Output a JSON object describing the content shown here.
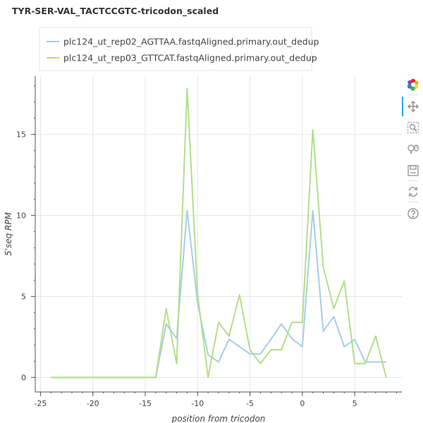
{
  "chart_data": {
    "type": "line",
    "title": "TYR-SER-VAL_TACTCCGTC-tricodon_scaled",
    "xlabel": "position from tricodon",
    "ylabel": "5'seq RPM",
    "xlim": [
      -25.5,
      9.5
    ],
    "ylim": [
      -0.9,
      18.6
    ],
    "x_ticks": [
      -25,
      -20,
      -15,
      -10,
      -5,
      0,
      5
    ],
    "y_ticks": [
      0,
      5,
      10,
      15
    ],
    "grid": true,
    "legend_position": "top-left",
    "x": [
      -24,
      -23,
      -22,
      -21,
      -20,
      -19,
      -18,
      -17,
      -16,
      -15,
      -14,
      -13,
      -12,
      -11,
      -10,
      -9,
      -8,
      -7,
      -6,
      -5,
      -4,
      -3,
      -2,
      -1,
      0,
      1,
      2,
      3,
      4,
      5,
      6,
      7,
      8
    ],
    "series": [
      {
        "name": "plc124_ut_rep02_AGTTAA.fastqAligned.primary.out_dedup",
        "color": "#a6cee3",
        "values": [
          0,
          0,
          0,
          0,
          0,
          0,
          0,
          0,
          0,
          0,
          0,
          3.3,
          2.4,
          10.3,
          4.6,
          1.4,
          0.95,
          2.35,
          1.9,
          1.45,
          1.45,
          2.35,
          3.3,
          2.4,
          1.9,
          10.3,
          2.85,
          3.75,
          1.9,
          2.35,
          0.95,
          0.95,
          0.95
        ]
      },
      {
        "name": "plc124_ut_rep03_GTTCAT.fastqAligned.primary.out_dedup",
        "color": "#b2df8a",
        "values": [
          0,
          0,
          0,
          0,
          0,
          0,
          0,
          0,
          0,
          0,
          0,
          4.25,
          0.85,
          17.85,
          5.1,
          0,
          3.4,
          2.55,
          5.1,
          1.7,
          0.85,
          1.7,
          1.7,
          3.4,
          3.4,
          15.3,
          6.8,
          4.25,
          5.95,
          0.85,
          0.85,
          2.55,
          0
        ]
      }
    ]
  },
  "toolbar": {
    "tools": [
      {
        "icon": "bokeh-logo-icon",
        "label": "Bokeh"
      },
      {
        "icon": "pan-icon",
        "label": "Pan"
      },
      {
        "icon": "box-zoom-icon",
        "label": "Box Zoom"
      },
      {
        "icon": "wheel-zoom-icon",
        "label": "Wheel Zoom"
      },
      {
        "icon": "save-icon",
        "label": "Save"
      },
      {
        "icon": "reset-icon",
        "label": "Reset"
      },
      {
        "icon": "help-icon",
        "label": "Help"
      }
    ]
  }
}
